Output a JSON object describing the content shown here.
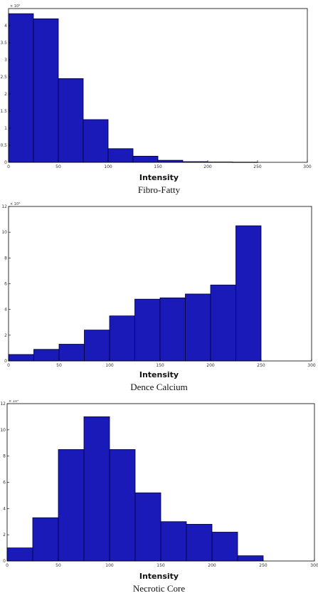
{
  "chart_data": [
    {
      "type": "bar",
      "histogram": true,
      "title": "Fibro-Fatty",
      "xlabel": "Intensity",
      "ylabel": "",
      "y_multiplier": "× 10⁴",
      "bin_edges": [
        0,
        25,
        50,
        75,
        100,
        125,
        150,
        175,
        200,
        225,
        250
      ],
      "values": [
        4.35,
        4.2,
        2.45,
        1.25,
        0.4,
        0.18,
        0.06,
        0.02,
        0.01,
        0.005
      ],
      "xlim": [
        0,
        300
      ],
      "ylim": [
        0,
        4.5
      ],
      "xticks": [
        "0",
        "50",
        "100",
        "150",
        "200",
        "250",
        "300"
      ],
      "yticks": [
        "0",
        "0.5",
        "1",
        "1.5",
        "2",
        "2.5",
        "3",
        "3.5",
        "4"
      ],
      "bar_color": "#1a1ab8",
      "grid": false
    },
    {
      "type": "bar",
      "histogram": true,
      "title": "Dence Calcium",
      "xlabel": "Intensity",
      "ylabel": "",
      "y_multiplier": "× 10⁴",
      "bin_edges": [
        0,
        25,
        50,
        75,
        100,
        125,
        150,
        175,
        200,
        225,
        250
      ],
      "values": [
        0.5,
        0.9,
        1.3,
        2.4,
        3.5,
        4.8,
        4.9,
        5.2,
        5.9,
        10.5
      ],
      "xlim": [
        0,
        300
      ],
      "ylim": [
        0,
        12
      ],
      "xticks": [
        "0",
        "50",
        "100",
        "150",
        "200",
        "250",
        "300"
      ],
      "yticks": [
        "0",
        "2",
        "4",
        "6",
        "8",
        "10",
        "12"
      ],
      "bar_color": "#1a1ab8",
      "grid": false
    },
    {
      "type": "bar",
      "histogram": true,
      "title": "Necrotic Core",
      "xlabel": "Intensity",
      "ylabel": "",
      "y_multiplier": "× 10⁴",
      "bin_edges": [
        0,
        25,
        50,
        75,
        100,
        125,
        150,
        175,
        200,
        225,
        250
      ],
      "values": [
        1.0,
        3.3,
        8.5,
        11.0,
        8.5,
        5.2,
        3.0,
        2.8,
        2.2,
        0.4
      ],
      "xlim": [
        0,
        300
      ],
      "ylim": [
        0,
        12
      ],
      "xticks": [
        "0",
        "50",
        "100",
        "150",
        "200",
        "250",
        "300"
      ],
      "yticks": [
        "0",
        "2",
        "4",
        "6",
        "8",
        "10",
        "12"
      ],
      "bar_color": "#1a1ab8",
      "grid": false
    }
  ]
}
